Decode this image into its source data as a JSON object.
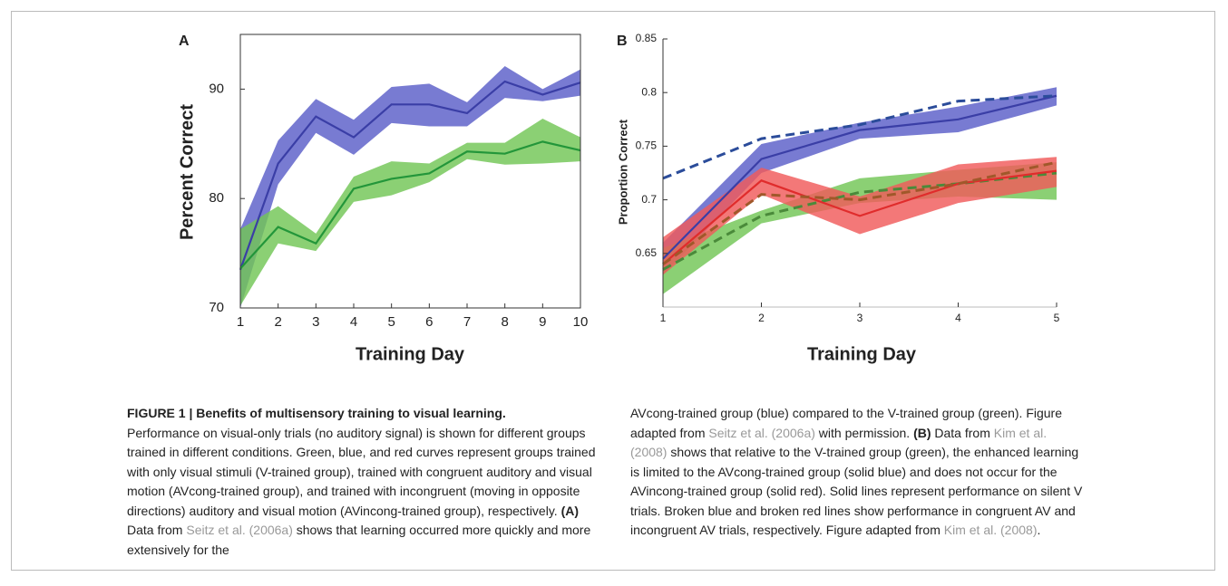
{
  "chart_data": [
    {
      "type": "line",
      "panel": "A",
      "xlabel": "Training Day",
      "ylabel": "Percent Correct",
      "frame": true,
      "x": [
        1,
        2,
        3,
        4,
        5,
        6,
        7,
        8,
        9,
        10
      ],
      "xlim": [
        1,
        10
      ],
      "xticks": [
        1,
        2,
        3,
        4,
        5,
        6,
        7,
        8,
        9,
        10
      ],
      "ylim": [
        70,
        95
      ],
      "yticks": [
        70,
        80,
        90
      ],
      "series": [
        {
          "color": "#3a3ea6",
          "band_color": "#5a5ec8",
          "dash": false,
          "values": [
            73.5,
            83.2,
            87.5,
            85.6,
            88.6,
            88.6,
            87.8,
            90.7,
            89.5,
            90.6
          ],
          "upper": [
            77.2,
            85.3,
            89.1,
            87.2,
            90.2,
            90.5,
            88.8,
            92.1,
            90.0,
            91.8
          ],
          "lower": [
            70.0,
            81.3,
            86.0,
            84.0,
            86.9,
            86.6,
            86.6,
            89.2,
            88.9,
            89.4
          ]
        },
        {
          "color": "#23963a",
          "band_color": "#72c655",
          "dash": false,
          "values": [
            73.6,
            77.4,
            75.9,
            80.9,
            81.8,
            82.3,
            84.3,
            84.1,
            85.2,
            84.4
          ],
          "upper": [
            77.2,
            79.3,
            76.8,
            82.0,
            83.4,
            83.2,
            85.1,
            85.1,
            87.3,
            85.6
          ],
          "lower": [
            70.2,
            75.9,
            75.2,
            79.7,
            80.3,
            81.5,
            83.6,
            83.1,
            83.2,
            83.4
          ]
        }
      ]
    },
    {
      "type": "line",
      "panel": "B",
      "xlabel": "Training Day",
      "ylabel": "Proportion Correct",
      "frame": false,
      "x": [
        1,
        2,
        3,
        4,
        5
      ],
      "xlim": [
        1,
        5
      ],
      "xticks": [
        1,
        2,
        3,
        4,
        5
      ],
      "ylim": [
        0.6,
        0.85
      ],
      "yticks": [
        0.65,
        0.7,
        0.75,
        0.8,
        0.85
      ],
      "series": [
        {
          "color": "#3a3ea6",
          "band_color": "#5a5ec8",
          "dash": false,
          "values": [
            0.645,
            0.738,
            0.765,
            0.775,
            0.797
          ],
          "upper": [
            0.66,
            0.752,
            0.772,
            0.787,
            0.805
          ],
          "lower": [
            0.63,
            0.725,
            0.757,
            0.763,
            0.788
          ]
        },
        {
          "color": "#4a8a3a",
          "band_color": "#72c655",
          "dash": true,
          "values": [
            0.635,
            0.685,
            0.707,
            0.715,
            0.725
          ],
          "upper": [
            0.655,
            0.69,
            0.72,
            0.728,
            0.735
          ],
          "lower": [
            0.612,
            0.678,
            0.697,
            0.703,
            0.7
          ]
        },
        {
          "color": "#e02c2c",
          "band_color": "#f05a5a",
          "dash": false,
          "values": [
            0.64,
            0.718,
            0.685,
            0.715,
            0.727
          ],
          "upper": [
            0.665,
            0.73,
            0.703,
            0.733,
            0.74
          ],
          "lower": [
            0.63,
            0.705,
            0.668,
            0.697,
            0.712
          ]
        },
        {
          "color": "#a0582a",
          "band_color": "#c8702a",
          "dash": true,
          "values": [
            0.64,
            0.705,
            0.7,
            0.715,
            0.735
          ]
        },
        {
          "color": "#2b4c9a",
          "dash": true,
          "values": [
            0.72,
            0.757,
            0.77,
            0.792,
            0.797
          ]
        }
      ]
    }
  ],
  "caption": {
    "heading": "FIGURE 1 | Benefits of multisensory training to visual learning.",
    "left": [
      {
        "text": "Performance on visual-only trials (no auditory signal) is shown for different groups trained in different conditions. Green, blue, and red curves represent groups trained with only visual stimuli (V-trained group), trained with congruent auditory and visual motion (AVcong-trained group), and trained with incongruent (moving in opposite directions) auditory and visual motion (AVincong-trained group), respectively. ",
        "style": "plain"
      },
      {
        "text": "(A)",
        "style": "bold"
      },
      {
        "text": " Data from ",
        "style": "plain"
      },
      {
        "text": "Seitz et al. (2006a)",
        "style": "link"
      },
      {
        "text": " shows that learning occurred more quickly and more extensively for the",
        "style": "plain"
      }
    ],
    "right": [
      {
        "text": "AVcong-trained group (blue) compared to the V-trained group (green). Figure adapted from ",
        "style": "plain"
      },
      {
        "text": "Seitz et al. (2006a)",
        "style": "link"
      },
      {
        "text": " with permission. ",
        "style": "plain"
      },
      {
        "text": "(B)",
        "style": "bold"
      },
      {
        "text": " Data from ",
        "style": "plain"
      },
      {
        "text": "Kim et al. (2008)",
        "style": "link"
      },
      {
        "text": " shows that relative to the V-trained group (green), the enhanced learning is limited to the AVcong-trained group (solid blue) and does not occur for the AVincong-trained group (solid red). Solid lines represent performance on silent V trials. Broken blue and broken red lines show performance in congruent AV and incongruent AV trials, respectively. Figure adapted from ",
        "style": "plain"
      },
      {
        "text": "Kim et al. (2008)",
        "style": "link"
      },
      {
        "text": ".",
        "style": "plain"
      }
    ]
  }
}
